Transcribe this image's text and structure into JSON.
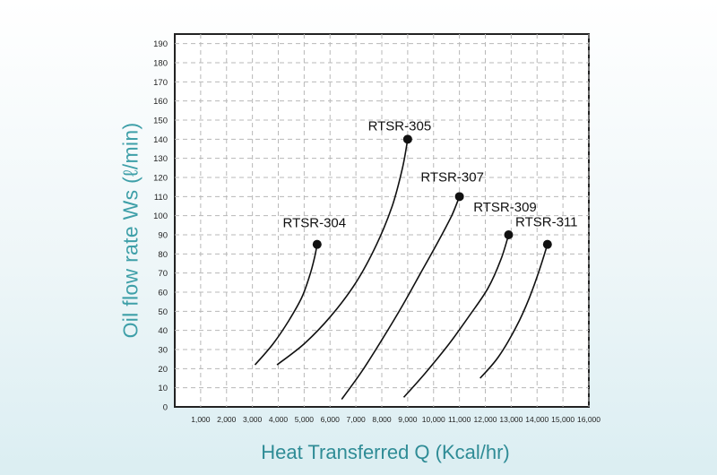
{
  "chart_data": {
    "type": "line",
    "title": "",
    "xlabel": "Heat Transferred Q (Kcal/hr)",
    "ylabel": "Oil flow rate Ws (ℓ/min)",
    "xlim": [
      0,
      16000
    ],
    "ylim": [
      0,
      195
    ],
    "x_ticks": [
      1000,
      2000,
      3000,
      4000,
      5000,
      6000,
      7000,
      8000,
      9000,
      10000,
      11000,
      12000,
      13000,
      14000,
      15000,
      16000
    ],
    "x_tick_labels": [
      "1,000",
      "2,000",
      "3,000",
      "4,000",
      "5,000",
      "6,000",
      "7,000",
      "8,000",
      "9,000",
      "10,000",
      "11,000",
      "12,000",
      "13,000",
      "14,000",
      "15,000",
      "16,000"
    ],
    "y_ticks": [
      0,
      10,
      20,
      30,
      40,
      50,
      60,
      70,
      80,
      90,
      100,
      110,
      120,
      130,
      140,
      150,
      160,
      170,
      180,
      190
    ],
    "grid": true,
    "series": [
      {
        "name": "RTSR-304",
        "x": [
          3100,
          3800,
          4400,
          4900,
          5200,
          5400,
          5500
        ],
        "y": [
          22,
          33,
          45,
          57,
          68,
          78,
          85
        ]
      },
      {
        "name": "RTSR-305",
        "x": [
          3950,
          5000,
          6000,
          7000,
          7800,
          8400,
          8800,
          9000
        ],
        "y": [
          22,
          33,
          47,
          65,
          85,
          105,
          125,
          140
        ]
      },
      {
        "name": "RTSR-307",
        "x": [
          6450,
          7200,
          8000,
          8800,
          9500,
          10200,
          10700,
          11000
        ],
        "y": [
          4,
          18,
          35,
          53,
          70,
          87,
          100,
          110
        ]
      },
      {
        "name": "RTSR-309",
        "x": [
          8850,
          9700,
          10600,
          11400,
          12100,
          12600,
          12900
        ],
        "y": [
          5,
          18,
          33,
          48,
          62,
          77,
          90
        ]
      },
      {
        "name": "RTSR-311",
        "x": [
          11800,
          12500,
          13200,
          13700,
          14100,
          14400
        ],
        "y": [
          15,
          26,
          42,
          57,
          72,
          85
        ]
      }
    ]
  }
}
